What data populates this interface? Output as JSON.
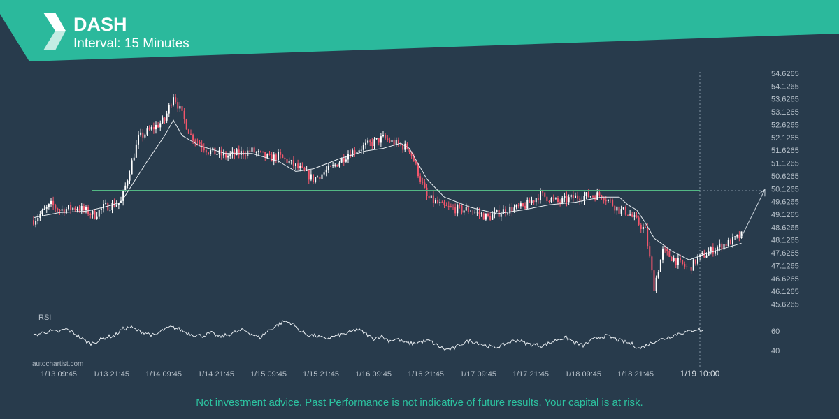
{
  "header": {
    "title": "DASH",
    "subtitle": "Interval: 15 Minutes",
    "accent": "#2bb99c",
    "logo_icon": "autochartist-logo-icon"
  },
  "footer": {
    "watermark": "autochartist.com",
    "disclaimer": "Not investment advice. Past Performance is not indicative of future results. Your capital is at risk."
  },
  "chart_data": {
    "type": "candlestick",
    "symbol": "DASH",
    "interval": "15 Minutes",
    "ylim": [
      45.6265,
      54.6265
    ],
    "y_ticks": [
      "54.6265",
      "54.1265",
      "53.6265",
      "53.1265",
      "52.6265",
      "52.1265",
      "51.6265",
      "51.1265",
      "50.6265",
      "50.1265",
      "49.6265",
      "49.1265",
      "48.6265",
      "48.1265",
      "47.6265",
      "47.1265",
      "46.6265",
      "46.1265",
      "45.6265"
    ],
    "x_ticks": [
      "1/13 09:45",
      "1/13 21:45",
      "1/14 09:45",
      "1/14 21:45",
      "1/15 09:45",
      "1/15 21:45",
      "1/16 09:45",
      "1/16 21:45",
      "1/17 09:45",
      "1/17 21:45",
      "1/18 09:45",
      "1/18 21:45"
    ],
    "x_last_label": "1/19 10:00",
    "resistance_level": 50.05,
    "price_path": [
      [
        0,
        48.9
      ],
      [
        2,
        49.5
      ],
      [
        3,
        49.3
      ],
      [
        5,
        49.4
      ],
      [
        7,
        49.1
      ],
      [
        8,
        49.4
      ],
      [
        10,
        49.6
      ],
      [
        12,
        52.1
      ],
      [
        15,
        52.8
      ],
      [
        16,
        53.8
      ],
      [
        18,
        52.2
      ],
      [
        20,
        51.6
      ],
      [
        22,
        51.4
      ],
      [
        25,
        51.6
      ],
      [
        27,
        51.3
      ],
      [
        28,
        51.4
      ],
      [
        30,
        51.0
      ],
      [
        32,
        50.5
      ],
      [
        34,
        50.9
      ],
      [
        36,
        51.5
      ],
      [
        38,
        51.8
      ],
      [
        40,
        52.1
      ],
      [
        42,
        51.8
      ],
      [
        43,
        51.7
      ],
      [
        45,
        49.8
      ],
      [
        47,
        49.4
      ],
      [
        49,
        49.3
      ],
      [
        50,
        49.3
      ],
      [
        52,
        49.0
      ],
      [
        54,
        49.3
      ],
      [
        56,
        49.4
      ],
      [
        58,
        49.9
      ],
      [
        60,
        49.6
      ],
      [
        62,
        49.8
      ],
      [
        65,
        49.9
      ],
      [
        66,
        49.6
      ],
      [
        67,
        49.3
      ],
      [
        68,
        49.2
      ],
      [
        70,
        48.5
      ],
      [
        71,
        46.3
      ],
      [
        72,
        47.7
      ],
      [
        74,
        47.2
      ],
      [
        75,
        47.0
      ],
      [
        76,
        47.4
      ],
      [
        78,
        47.8
      ],
      [
        80,
        48.1
      ],
      [
        81,
        48.3
      ]
    ],
    "sma_path": [
      [
        0,
        49.0
      ],
      [
        3,
        49.2
      ],
      [
        6,
        49.25
      ],
      [
        8,
        49.4
      ],
      [
        10,
        49.6
      ],
      [
        13,
        51.2
      ],
      [
        15,
        52.2
      ],
      [
        16,
        52.8
      ],
      [
        17,
        52.2
      ],
      [
        19,
        51.8
      ],
      [
        22,
        51.5
      ],
      [
        25,
        51.5
      ],
      [
        28,
        51.2
      ],
      [
        30,
        50.8
      ],
      [
        32,
        50.9
      ],
      [
        35,
        51.3
      ],
      [
        38,
        51.6
      ],
      [
        40,
        51.7
      ],
      [
        42,
        51.9
      ],
      [
        43,
        51.7
      ],
      [
        45,
        50.5
      ],
      [
        47,
        49.8
      ],
      [
        50,
        49.4
      ],
      [
        53,
        49.15
      ],
      [
        56,
        49.3
      ],
      [
        59,
        49.5
      ],
      [
        62,
        49.6
      ],
      [
        65,
        49.8
      ],
      [
        67,
        49.8
      ],
      [
        68,
        49.5
      ],
      [
        69,
        49.3
      ],
      [
        70,
        48.8
      ],
      [
        71,
        48.2
      ],
      [
        73,
        47.7
      ],
      [
        75,
        47.35
      ],
      [
        77,
        47.6
      ],
      [
        79,
        47.8
      ],
      [
        81,
        48.0
      ]
    ],
    "projection": {
      "from": [
        81,
        48.25
      ],
      "to": [
        88.5,
        50.1
      ]
    },
    "rsi": {
      "label": "RSI",
      "ticks": [
        60,
        40
      ],
      "values": [
        55,
        58,
        60,
        59,
        62,
        58,
        52,
        47,
        50,
        54,
        55,
        62,
        64,
        60,
        58,
        55,
        61,
        64,
        62,
        58,
        56,
        55,
        58,
        54,
        56,
        59,
        61,
        57,
        53,
        60,
        65,
        70,
        68,
        60,
        56,
        55,
        52,
        54,
        56,
        58,
        62,
        58,
        52,
        55,
        50,
        52,
        48,
        47,
        49,
        50,
        45,
        41,
        42,
        47,
        50,
        48,
        45,
        43,
        45,
        49,
        51,
        47,
        46,
        45,
        48,
        52,
        53,
        48,
        45,
        50,
        54,
        55,
        52,
        49,
        47,
        42,
        46,
        50,
        52,
        55,
        58,
        59,
        62,
        60
      ]
    }
  },
  "colors": {
    "background": "#283b4c",
    "bull": "#ffffff",
    "bear": "#f2566b",
    "resistance": "#53b884",
    "sma": "#e8edf1",
    "grid_text": "#b9c3cc",
    "disclaimer": "#2cc3a0"
  }
}
